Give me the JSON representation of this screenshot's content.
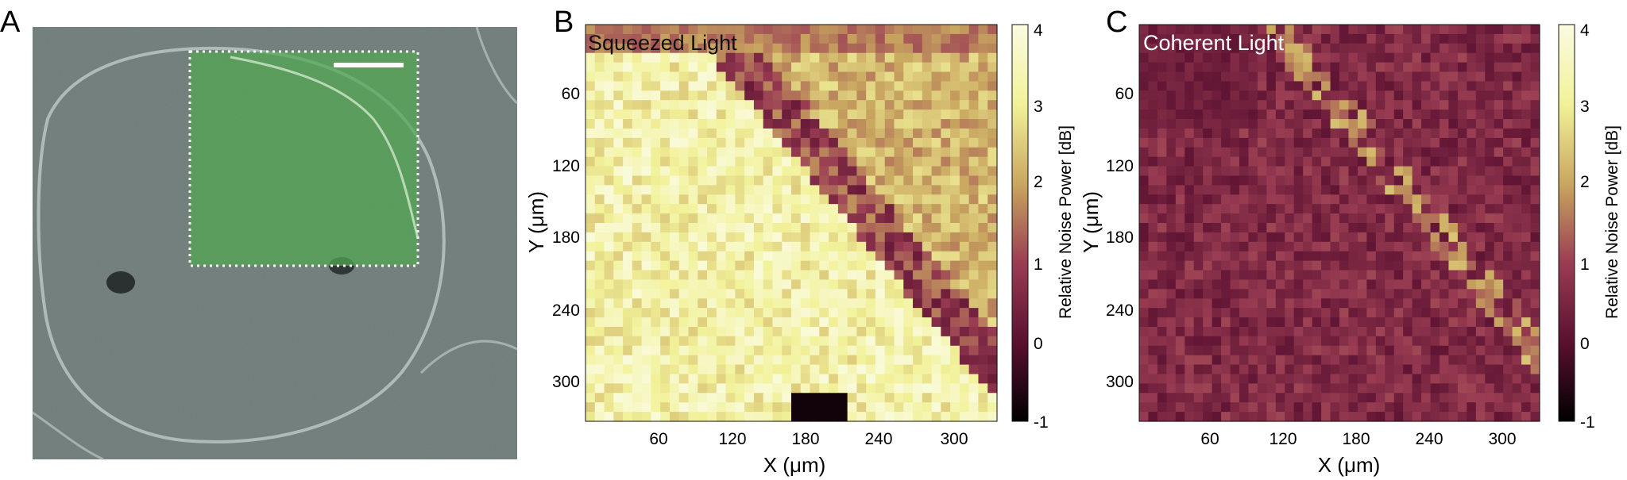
{
  "panels": {
    "A": {
      "letter": "A"
    },
    "B": {
      "letter": "B",
      "title": "Squeezed Light"
    },
    "C": {
      "letter": "C",
      "title": "Coherent Light"
    }
  },
  "axes": {
    "x_label": "X (μm)",
    "y_label": "Y (μm)",
    "x_ticks": [
      "60",
      "120",
      "180",
      "240",
      "300"
    ],
    "y_ticks": [
      "60",
      "120",
      "180",
      "240",
      "300"
    ]
  },
  "colorbar": {
    "label": "Relative Noise Power [dB]",
    "ticks": [
      "4",
      "3",
      "2",
      "1",
      "0",
      "-1"
    ],
    "stops": [
      "#fafbe0",
      "#f2f29a",
      "#c9a760",
      "#9a3d53",
      "#5a1030",
      "#000000"
    ]
  },
  "colors": {
    "micrograph": "#6f7d7a",
    "overlay": "#52a850",
    "roi_border": "#ffffff",
    "scale_bar": "#ffffff"
  },
  "chart_data": [
    {
      "type": "heatmap",
      "panel": "B",
      "title": "Squeezed Light",
      "xlabel": "X (μm)",
      "ylabel": "Y (μm)",
      "xlim": [
        0,
        330
      ],
      "ylim": [
        330,
        0
      ],
      "x_ticks": [
        60,
        120,
        180,
        240,
        300
      ],
      "y_ticks": [
        60,
        120,
        180,
        240,
        300
      ],
      "color_range_db": [
        -1,
        4
      ],
      "typical_value_db": 3.1,
      "region_values_db": {
        "upper_right_background": 2.2,
        "diagonal_membrane_edge": 0.2,
        "interior": 3.2
      }
    },
    {
      "type": "heatmap",
      "panel": "C",
      "title": "Coherent Light",
      "xlabel": "X (μm)",
      "ylabel": "Y (μm)",
      "xlim": [
        0,
        330
      ],
      "ylim": [
        330,
        0
      ],
      "x_ticks": [
        60,
        120,
        180,
        240,
        300
      ],
      "y_ticks": [
        60,
        120,
        180,
        240,
        300
      ],
      "color_range_db": [
        -1,
        4
      ],
      "typical_value_db": 0.6,
      "region_values_db": {
        "background": 0.6,
        "diagonal_membrane_edge": 1.8
      }
    }
  ]
}
